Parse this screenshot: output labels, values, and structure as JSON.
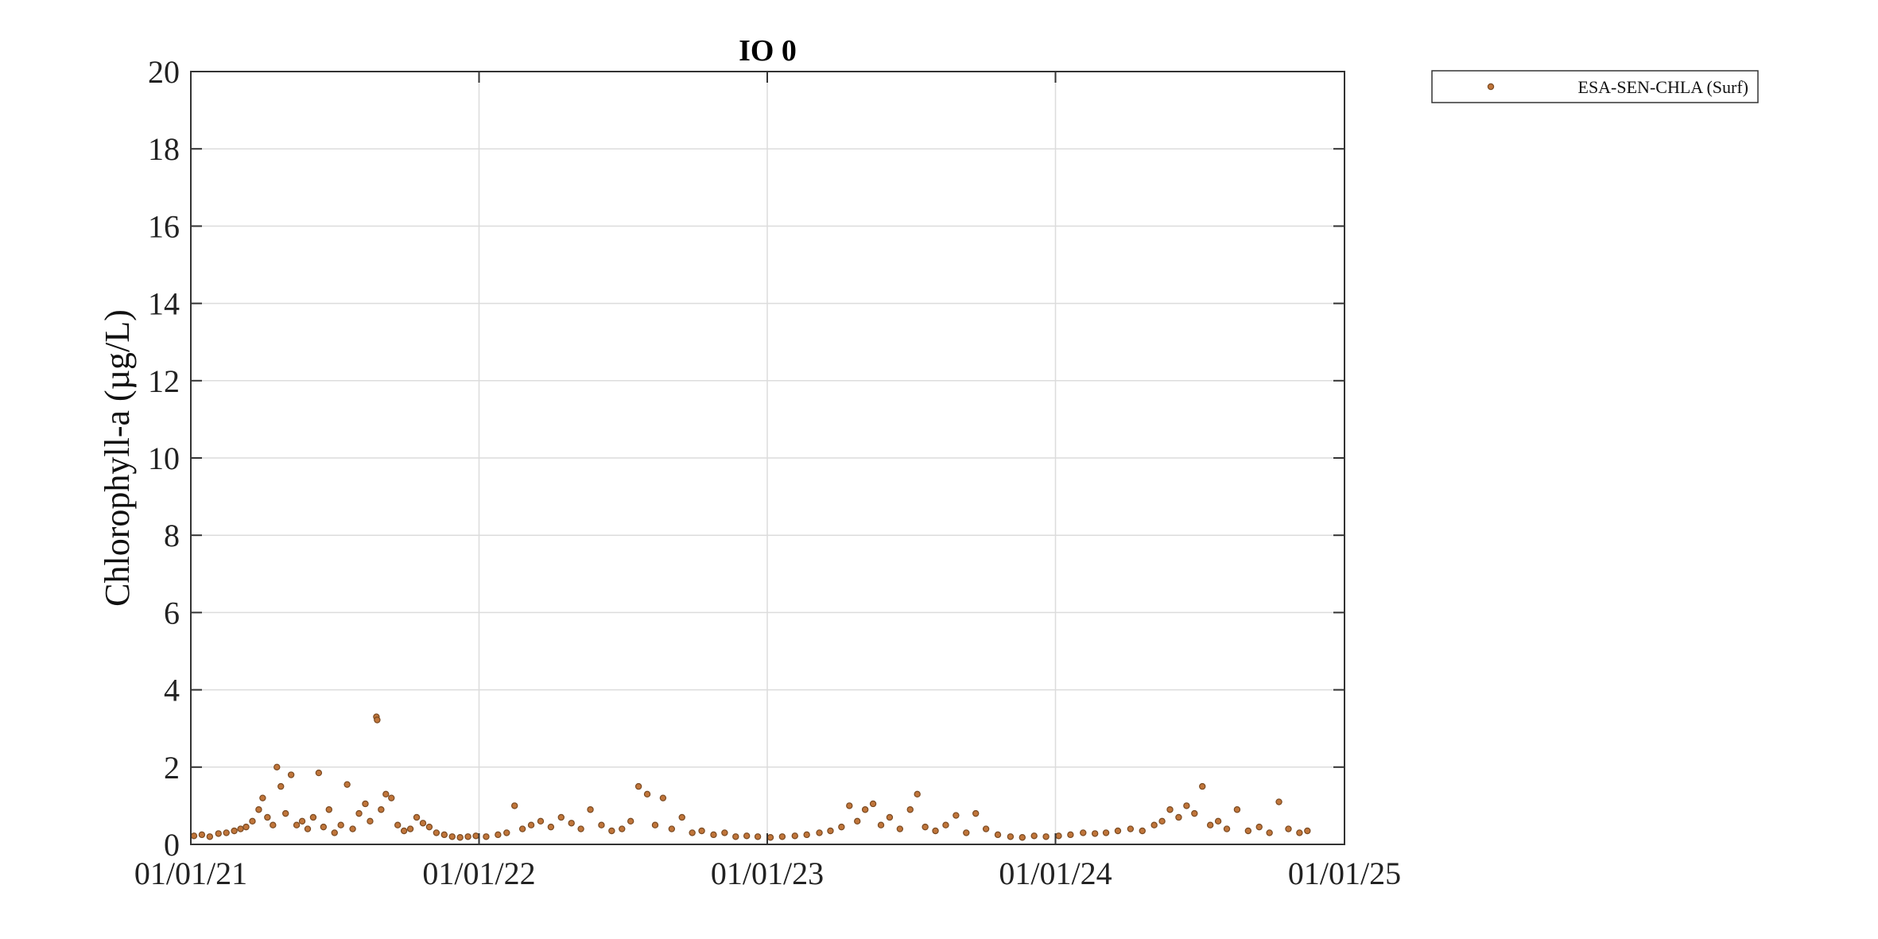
{
  "chart_data": {
    "type": "scatter",
    "title": "IO 0",
    "xlabel": "",
    "ylabel": "Chlorophyll-a (µg/L)",
    "x_axis": {
      "type": "date",
      "range": [
        "2021-01-01",
        "2025-01-01"
      ],
      "ticks": [
        "2021-01-01",
        "2022-01-01",
        "2023-01-01",
        "2024-01-01",
        "2025-01-01"
      ],
      "tick_labels": [
        "01/01/21",
        "01/01/22",
        "01/01/23",
        "01/01/24",
        "01/01/25"
      ],
      "grid": true
    },
    "y_axis": {
      "range": [
        0,
        20
      ],
      "ticks": [
        0,
        2,
        4,
        6,
        8,
        10,
        12,
        14,
        16,
        18,
        20
      ],
      "tick_labels": [
        "0",
        "2",
        "4",
        "6",
        "8",
        "10",
        "12",
        "14",
        "16",
        "18",
        "20"
      ],
      "grid": true
    },
    "legend": {
      "placement": "outside-top-right"
    },
    "series": [
      {
        "name": "ESA-SEN-CHLA (Surf)",
        "color": "#c0753a",
        "edge_color": "#7a4a22",
        "marker": "circle",
        "points": [
          [
            "2021-01-05",
            0.22
          ],
          [
            "2021-01-15",
            0.25
          ],
          [
            "2021-01-25",
            0.2
          ],
          [
            "2021-02-05",
            0.28
          ],
          [
            "2021-02-15",
            0.3
          ],
          [
            "2021-02-25",
            0.35
          ],
          [
            "2021-03-05",
            0.4
          ],
          [
            "2021-03-12",
            0.45
          ],
          [
            "2021-03-20",
            0.6
          ],
          [
            "2021-03-28",
            0.9
          ],
          [
            "2021-04-02",
            1.2
          ],
          [
            "2021-04-08",
            0.7
          ],
          [
            "2021-04-15",
            0.5
          ],
          [
            "2021-04-20",
            2.0
          ],
          [
            "2021-04-25",
            1.5
          ],
          [
            "2021-05-01",
            0.8
          ],
          [
            "2021-05-08",
            1.8
          ],
          [
            "2021-05-15",
            0.5
          ],
          [
            "2021-05-22",
            0.6
          ],
          [
            "2021-05-29",
            0.4
          ],
          [
            "2021-06-05",
            0.7
          ],
          [
            "2021-06-12",
            1.85
          ],
          [
            "2021-06-18",
            0.45
          ],
          [
            "2021-06-25",
            0.9
          ],
          [
            "2021-07-02",
            0.3
          ],
          [
            "2021-07-10",
            0.5
          ],
          [
            "2021-07-18",
            1.55
          ],
          [
            "2021-07-25",
            0.4
          ],
          [
            "2021-08-02",
            0.8
          ],
          [
            "2021-08-10",
            1.05
          ],
          [
            "2021-08-16",
            0.6
          ],
          [
            "2021-08-24",
            3.3
          ],
          [
            "2021-08-25",
            3.22
          ],
          [
            "2021-08-30",
            0.9
          ],
          [
            "2021-09-05",
            1.3
          ],
          [
            "2021-09-12",
            1.2
          ],
          [
            "2021-09-20",
            0.5
          ],
          [
            "2021-09-28",
            0.35
          ],
          [
            "2021-10-06",
            0.4
          ],
          [
            "2021-10-14",
            0.7
          ],
          [
            "2021-10-22",
            0.55
          ],
          [
            "2021-10-30",
            0.45
          ],
          [
            "2021-11-08",
            0.3
          ],
          [
            "2021-11-18",
            0.25
          ],
          [
            "2021-11-28",
            0.2
          ],
          [
            "2021-12-08",
            0.18
          ],
          [
            "2021-12-18",
            0.2
          ],
          [
            "2021-12-28",
            0.22
          ],
          [
            "2022-01-10",
            0.2
          ],
          [
            "2022-01-25",
            0.25
          ],
          [
            "2022-02-05",
            0.3
          ],
          [
            "2022-02-15",
            1.0
          ],
          [
            "2022-02-25",
            0.4
          ],
          [
            "2022-03-08",
            0.5
          ],
          [
            "2022-03-20",
            0.6
          ],
          [
            "2022-04-02",
            0.45
          ],
          [
            "2022-04-15",
            0.7
          ],
          [
            "2022-04-28",
            0.55
          ],
          [
            "2022-05-10",
            0.4
          ],
          [
            "2022-05-22",
            0.9
          ],
          [
            "2022-06-05",
            0.5
          ],
          [
            "2022-06-18",
            0.35
          ],
          [
            "2022-07-01",
            0.4
          ],
          [
            "2022-07-12",
            0.6
          ],
          [
            "2022-07-22",
            1.5
          ],
          [
            "2022-08-02",
            1.3
          ],
          [
            "2022-08-12",
            0.5
          ],
          [
            "2022-08-22",
            1.2
          ],
          [
            "2022-09-02",
            0.4
          ],
          [
            "2022-09-15",
            0.7
          ],
          [
            "2022-09-28",
            0.3
          ],
          [
            "2022-10-10",
            0.35
          ],
          [
            "2022-10-25",
            0.25
          ],
          [
            "2022-11-08",
            0.3
          ],
          [
            "2022-11-22",
            0.2
          ],
          [
            "2022-12-06",
            0.22
          ],
          [
            "2022-12-20",
            0.2
          ],
          [
            "2023-01-05",
            0.18
          ],
          [
            "2023-01-20",
            0.2
          ],
          [
            "2023-02-05",
            0.22
          ],
          [
            "2023-02-20",
            0.25
          ],
          [
            "2023-03-08",
            0.3
          ],
          [
            "2023-03-22",
            0.35
          ],
          [
            "2023-04-05",
            0.45
          ],
          [
            "2023-04-15",
            1.0
          ],
          [
            "2023-04-25",
            0.6
          ],
          [
            "2023-05-05",
            0.9
          ],
          [
            "2023-05-15",
            1.05
          ],
          [
            "2023-05-25",
            0.5
          ],
          [
            "2023-06-05",
            0.7
          ],
          [
            "2023-06-18",
            0.4
          ],
          [
            "2023-07-01",
            0.9
          ],
          [
            "2023-07-10",
            1.3
          ],
          [
            "2023-07-20",
            0.45
          ],
          [
            "2023-08-02",
            0.35
          ],
          [
            "2023-08-15",
            0.5
          ],
          [
            "2023-08-28",
            0.75
          ],
          [
            "2023-09-10",
            0.3
          ],
          [
            "2023-09-22",
            0.8
          ],
          [
            "2023-10-05",
            0.4
          ],
          [
            "2023-10-20",
            0.25
          ],
          [
            "2023-11-05",
            0.2
          ],
          [
            "2023-11-20",
            0.18
          ],
          [
            "2023-12-05",
            0.22
          ],
          [
            "2023-12-20",
            0.2
          ],
          [
            "2024-01-05",
            0.22
          ],
          [
            "2024-01-20",
            0.25
          ],
          [
            "2024-02-05",
            0.3
          ],
          [
            "2024-02-20",
            0.28
          ],
          [
            "2024-03-05",
            0.3
          ],
          [
            "2024-03-20",
            0.35
          ],
          [
            "2024-04-05",
            0.4
          ],
          [
            "2024-04-20",
            0.35
          ],
          [
            "2024-05-05",
            0.5
          ],
          [
            "2024-05-15",
            0.6
          ],
          [
            "2024-05-25",
            0.9
          ],
          [
            "2024-06-05",
            0.7
          ],
          [
            "2024-06-15",
            1.0
          ],
          [
            "2024-06-25",
            0.8
          ],
          [
            "2024-07-05",
            1.5
          ],
          [
            "2024-07-15",
            0.5
          ],
          [
            "2024-07-25",
            0.6
          ],
          [
            "2024-08-05",
            0.4
          ],
          [
            "2024-08-18",
            0.9
          ],
          [
            "2024-09-01",
            0.35
          ],
          [
            "2024-09-15",
            0.45
          ],
          [
            "2024-09-28",
            0.3
          ],
          [
            "2024-10-10",
            1.1
          ],
          [
            "2024-10-22",
            0.4
          ],
          [
            "2024-11-05",
            0.3
          ],
          [
            "2024-11-15",
            0.35
          ]
        ]
      }
    ]
  }
}
